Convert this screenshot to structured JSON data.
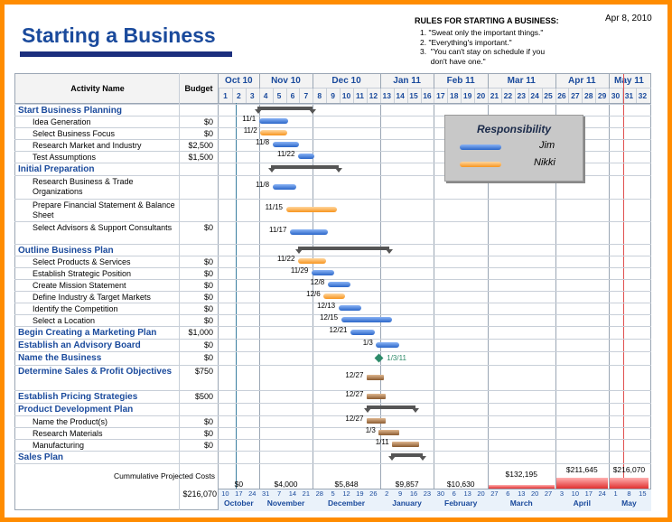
{
  "title": "Starting a Business",
  "date": "Apr 8, 2010",
  "rules": {
    "heading": "RULES FOR STARTING A BUSINESS:",
    "items": [
      "1.  \"Sweat only the important things.\"",
      "2.  \"Everything's important.\"",
      "3.  \"You can't stay on schedule if you",
      "     don't have one.\""
    ]
  },
  "headers": {
    "activity": "Activity Name",
    "budget": "Budget"
  },
  "months": [
    "Oct 10",
    "Nov 10",
    "Dec 10",
    "Jan 11",
    "Feb 11",
    "Mar 11",
    "Apr 11",
    "May 11"
  ],
  "weeks": [
    "1",
    "2",
    "3",
    "4",
    "5",
    "6",
    "7",
    "8",
    "9",
    "10",
    "11",
    "12",
    "13",
    "14",
    "15",
    "16",
    "17",
    "18",
    "19",
    "20",
    "21",
    "22",
    "23",
    "24",
    "25",
    "26",
    "27",
    "28",
    "29",
    "30",
    "31",
    "32"
  ],
  "legend": {
    "title": "Responsibility",
    "items": [
      {
        "name": "Jim",
        "color": "blue"
      },
      {
        "name": "Nikki",
        "color": "orange"
      }
    ]
  },
  "rows": [
    {
      "name": "Start Business Planning",
      "section": true,
      "budget": ""
    },
    {
      "name": "Idea Generation",
      "budget": "$0",
      "date": "11/1"
    },
    {
      "name": "Select Business Focus",
      "budget": "$0",
      "date": "11/2"
    },
    {
      "name": "Research Market and Industry",
      "budget": "$2,500",
      "date": "11/8"
    },
    {
      "name": "Test Assumptions",
      "budget": "$1,500",
      "date": "11/22"
    },
    {
      "name": "Initial Preparation",
      "section": true,
      "budget": ""
    },
    {
      "name": "Research Business & Trade Organizations",
      "budget": "",
      "date": "11/8"
    },
    {
      "name": "Prepare Financial Statement & Balance Sheet",
      "budget": "",
      "date": "11/15"
    },
    {
      "name": "Select Advisors & Support Consultants",
      "budget": "$0",
      "date": "11/17"
    },
    {
      "name": "Outline Business Plan",
      "section": true,
      "budget": ""
    },
    {
      "name": "Select Products & Services",
      "budget": "$0",
      "date": "11/22"
    },
    {
      "name": "Establish Strategic Position",
      "budget": "$0",
      "date": "11/29"
    },
    {
      "name": "Create Mission Statement",
      "budget": "$0",
      "date": "12/8"
    },
    {
      "name": "Define Industry & Target Markets",
      "budget": "$0",
      "date": "12/6"
    },
    {
      "name": "Identify the Competition",
      "budget": "$0",
      "date": "12/13"
    },
    {
      "name": "Select a Location",
      "budget": "$0",
      "date": "12/15"
    },
    {
      "name": "Begin Creating a Marketing Plan",
      "section": true,
      "budget": "$1,000",
      "date": "12/21"
    },
    {
      "name": "Establish an Advisory Board",
      "section": true,
      "budget": "$0",
      "date": "1/3"
    },
    {
      "name": "Name the Business",
      "section": true,
      "budget": "$0",
      "date": "1/3/11"
    },
    {
      "name": "Determine Sales & Profit Objectives",
      "section": true,
      "budget": "$750",
      "date": "12/27"
    },
    {
      "name": "Establish Pricing Strategies",
      "section": true,
      "budget": "$500",
      "date": "12/27"
    },
    {
      "name": "Product Development Plan",
      "section": true,
      "budget": ""
    },
    {
      "name": "Name the Product(s)",
      "budget": "$0",
      "date": "12/27"
    },
    {
      "name": "Research Materials",
      "budget": "$0",
      "date": "1/3"
    },
    {
      "name": "Manufacturing",
      "budget": "$0",
      "date": "1/11"
    },
    {
      "name": "Sales Plan",
      "section": true,
      "budget": ""
    }
  ],
  "cost": {
    "label": "Cummulative Projected Costs",
    "total": "$216,070",
    "values": [
      "$0",
      "$4,000",
      "$5,848",
      "$9,857",
      "$10,630",
      "$132,195",
      "$211,645",
      "$216,070"
    ]
  },
  "footer": {
    "days": [
      "10",
      "17",
      "24",
      "31",
      "7",
      "14",
      "21",
      "28",
      "5",
      "12",
      "19",
      "26",
      "2",
      "9",
      "16",
      "23",
      "30",
      "6",
      "13",
      "20",
      "27",
      "6",
      "13",
      "20",
      "27",
      "3",
      "10",
      "17",
      "24",
      "1",
      "8",
      "15"
    ],
    "months": [
      "October",
      "November",
      "December",
      "January",
      "February",
      "March",
      "April",
      "May"
    ]
  }
}
